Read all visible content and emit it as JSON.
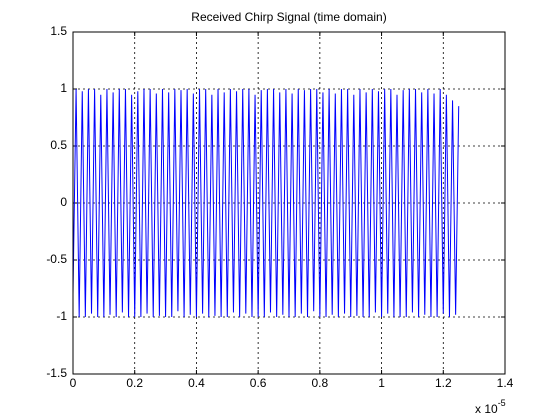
{
  "chart_data": {
    "type": "line",
    "title": "Received Chirp Signal (time domain)",
    "x_multiplier": {
      "base": "x 10",
      "exponent": "-5"
    },
    "x": [
      0,
      0.01,
      0.02,
      0.03,
      0.04,
      0.05,
      0.06,
      0.07,
      0.08,
      0.09,
      0.1,
      0.11,
      0.12,
      0.13,
      0.14,
      0.15,
      0.16,
      0.17,
      0.18,
      0.19,
      0.2,
      0.21,
      0.22,
      0.23,
      0.24,
      0.25,
      0.26,
      0.27,
      0.28,
      0.29,
      0.3,
      0.31,
      0.32,
      0.33,
      0.34,
      0.35,
      0.36,
      0.37,
      0.38,
      0.39,
      0.4,
      0.41,
      0.42,
      0.43,
      0.44,
      0.45,
      0.46,
      0.47,
      0.48,
      0.49,
      0.5,
      0.51,
      0.52,
      0.53,
      0.54,
      0.55,
      0.56,
      0.57,
      0.58,
      0.59,
      0.6,
      0.61,
      0.62,
      0.63,
      0.64,
      0.65,
      0.66,
      0.67,
      0.68,
      0.69,
      0.7,
      0.71,
      0.72,
      0.73,
      0.74,
      0.75,
      0.76,
      0.77,
      0.78,
      0.79,
      0.8,
      0.81,
      0.82,
      0.83,
      0.84,
      0.85,
      0.86,
      0.87,
      0.88,
      0.89,
      0.9,
      0.91,
      0.92,
      0.93,
      0.94,
      0.95,
      0.96,
      0.97,
      0.98,
      0.99,
      1,
      1.01,
      1.02,
      1.03,
      1.04,
      1.05,
      1.06,
      1.07,
      1.08,
      1.09,
      1.1,
      1.11,
      1.12,
      1.13,
      1.14,
      1.15,
      1.16,
      1.17,
      1.18,
      1.19,
      1.2,
      1.21,
      1.22,
      1.23,
      1.24,
      1.25
    ],
    "values": [
      -0.8,
      1,
      -1,
      0.98,
      -1,
      1,
      -0.97,
      1,
      -1,
      0.95,
      -1,
      1,
      -0.98,
      0.97,
      -1,
      1,
      -0.96,
      1,
      -1,
      0.95,
      -1,
      0.98,
      -1,
      1,
      -0.97,
      1,
      -1,
      0.96,
      -0.99,
      1,
      -1,
      0.97,
      -1,
      1,
      -0.95,
      0.99,
      -1,
      1,
      -0.98,
      0.96,
      -1,
      1,
      -0.97,
      1,
      -1,
      0.95,
      -0.99,
      1,
      -1,
      0.97,
      -1,
      1,
      -0.96,
      0.98,
      -1,
      1,
      -0.97,
      1,
      -1,
      0.95,
      -1,
      0.99,
      -1,
      1,
      -0.96,
      1,
      -1,
      0.97,
      -0.98,
      1,
      -1,
      0.96,
      -1,
      1,
      -0.97,
      0.99,
      -1,
      1,
      -0.95,
      1,
      -1,
      0.97,
      -1,
      1,
      -0.98,
      0.96,
      -1,
      1,
      -0.97,
      1,
      -1,
      0.95,
      -0.99,
      1,
      -1,
      0.97,
      -1,
      1,
      -0.96,
      0.98,
      -1,
      1,
      -0.97,
      1,
      -1,
      0.95,
      -1,
      0.99,
      -1,
      1,
      -0.96,
      1,
      -1,
      0.97,
      -0.98,
      1,
      -1,
      0.96,
      -1,
      1,
      -0.97,
      0.95,
      -1,
      0.9,
      -0.98,
      0.85
    ],
    "color": "#0000ff",
    "xlim": [
      0,
      1.4
    ],
    "xticks": [
      0,
      0.2,
      0.4,
      0.6,
      0.8,
      1,
      1.2,
      1.4
    ],
    "ylim": [
      -1.5,
      1.5
    ],
    "yticks": [
      -1.5,
      -1,
      -0.5,
      0,
      0.5,
      1,
      1.5
    ],
    "grid": true
  }
}
